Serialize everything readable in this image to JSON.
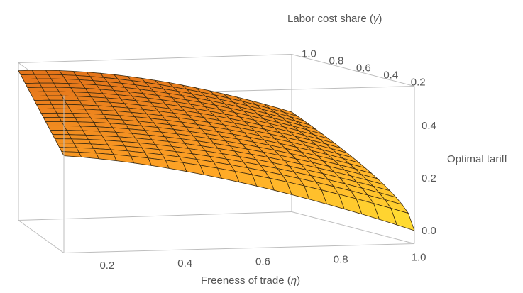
{
  "chart_data": {
    "type": "surface3d",
    "x_axis": {
      "label": "Freeness of trade (",
      "symbol": "η",
      "label_close": ")",
      "ticks": [
        "0.2",
        "0.4",
        "0.6",
        "0.8",
        "1.0"
      ],
      "range": [
        0.1,
        1.0
      ]
    },
    "y_axis": {
      "label": "Labor cost share (",
      "symbol": "γ",
      "label_close": ")",
      "ticks": [
        "0.2",
        "0.4",
        "0.6",
        "0.8",
        "1.0"
      ],
      "range": [
        0.1,
        1.0
      ]
    },
    "z_axis": {
      "label": "Optimal tariff",
      "ticks": [
        "0.0",
        "0.2",
        "0.4"
      ],
      "range": [
        -0.05,
        0.55
      ]
    },
    "grid_lines_per_axis": 20,
    "surface_samples": {
      "note_corners": "z at (x,y) corners",
      "z_at_x_min_y_min": 0.32,
      "z_at_x_max_y_min": 0.0,
      "z_at_x_min_y_max": 0.52,
      "z_at_x_max_y_max": 0.5
    },
    "colors": {
      "surface_low": "#ffe433",
      "surface_mid": "#ffa526",
      "surface_high": "#e5751a",
      "mesh": "#3b2a10",
      "box": "#bdbdbd"
    }
  }
}
